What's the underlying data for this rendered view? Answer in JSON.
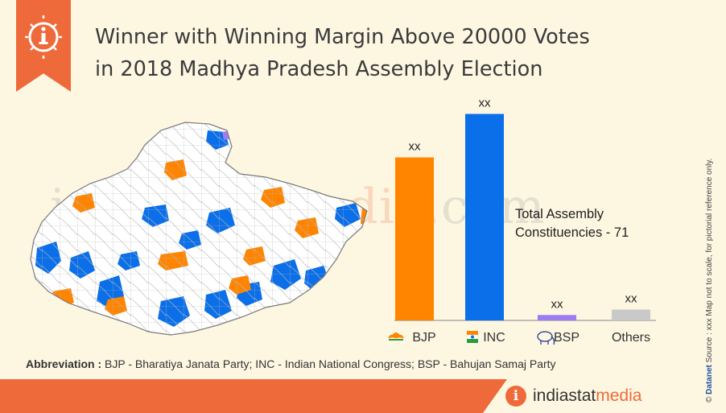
{
  "title": {
    "line1": "Winner with Winning Margin Above 20000 Votes",
    "line2": "in 2018 Madhya Pradesh Assembly Election"
  },
  "watermark": {
    "part1": "indiastat",
    "part2": "media",
    "part3": ".com"
  },
  "annotation": {
    "line1": "Total Assembly",
    "line2": "Constituencies - 71"
  },
  "abbreviation": {
    "label": "Abbreviation :",
    "text": " BJP - Bharatiya Janata Party; INC - Indian National Congress; BSP - Bahujan Samaj Party"
  },
  "brand": {
    "icon": "i",
    "part1": "indiastat",
    "part2": "media"
  },
  "side_note": {
    "prefix": "© ",
    "brand": "Datanet",
    "text": "   Source : xxx   Map not to scale, for pictorial reference only."
  },
  "colors": {
    "accent": "#ef6a3a",
    "bjp": "#ff8400",
    "inc": "#0a6fe8",
    "bsp": "#9e7cf0",
    "others": "#c9c9c9",
    "background": "#fdf7e2"
  },
  "icons": {
    "header": "info-icon",
    "bjp": "lotus-icon",
    "inc": "hand-flag-icon",
    "bsp": "elephant-icon"
  },
  "chart_data": {
    "type": "bar",
    "title": "Winner with Winning Margin Above 20000 Votes in 2018 Madhya Pradesh Assembly Election",
    "categories": [
      "BJP",
      "INC",
      "BSP",
      "Others"
    ],
    "values": [
      30,
      38,
      1,
      2
    ],
    "value_labels": [
      "xx",
      "xx",
      "xx",
      "xx"
    ],
    "colors": [
      "#ff8400",
      "#0a6fe8",
      "#9e7cf0",
      "#c9c9c9"
    ],
    "ylim": [
      0,
      40
    ],
    "grid": false,
    "legend": "none",
    "xlabel": "",
    "ylabel": "",
    "annotation": "Total Assembly Constituencies - 71"
  }
}
